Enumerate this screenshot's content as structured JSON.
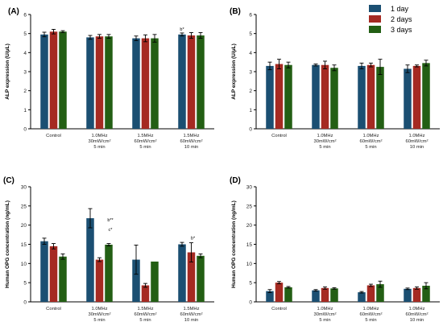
{
  "legend": {
    "items": [
      "1 day",
      "2 days",
      "3 days"
    ],
    "colors": [
      "#1b4f72",
      "#a52a22",
      "#235f14"
    ]
  },
  "chart_data": [
    {
      "type": "bar",
      "panel_label": "(A)",
      "xlabel": "",
      "ylabel": "ALP expression (U/μL)",
      "ylim": [
        0,
        6
      ],
      "yticks": [
        "0",
        "1",
        "2",
        "3",
        "4",
        "5",
        "6"
      ],
      "grid": false,
      "categories": [
        [
          "Control"
        ],
        [
          "1.0MHz",
          "30mW/cm²",
          "5 min"
        ],
        [
          "1.5MHz",
          "60mW/cm²",
          "5 min"
        ],
        [
          "1.5MHz",
          "60mW/cm²",
          "10 min"
        ]
      ],
      "series": [
        {
          "name": "1 day",
          "values": [
            4.95,
            4.8,
            4.75,
            4.95
          ],
          "errors": [
            0.12,
            0.1,
            0.12,
            0.08
          ]
        },
        {
          "name": "2 days",
          "values": [
            5.1,
            4.85,
            4.75,
            4.9
          ],
          "errors": [
            0.12,
            0.1,
            0.18,
            0.15
          ]
        },
        {
          "name": "3 days",
          "values": [
            5.1,
            4.85,
            4.75,
            4.9
          ],
          "errors": [
            0.05,
            0.1,
            0.2,
            0.15
          ]
        }
      ],
      "annotations": [
        {
          "group": 3,
          "series": 0,
          "text": "b*"
        }
      ]
    },
    {
      "type": "bar",
      "panel_label": "(B)",
      "xlabel": "",
      "ylabel": "ALP expression (U/μL)",
      "ylim": [
        0,
        6
      ],
      "yticks": [
        "0",
        "1",
        "2",
        "3",
        "4",
        "5",
        "6"
      ],
      "grid": false,
      "categories": [
        [
          "Control"
        ],
        [
          "1.0MHz",
          "30mW/cm²",
          "5 min"
        ],
        [
          "1.0MHz",
          "60mW/cm²",
          "5 min"
        ],
        [
          "1.0MHz",
          "60mW/cm²",
          "10 min"
        ]
      ],
      "series": [
        {
          "name": "1 day",
          "values": [
            3.3,
            3.35,
            3.3,
            3.15
          ],
          "errors": [
            0.2,
            0.05,
            0.15,
            0.2
          ]
        },
        {
          "name": "2 days",
          "values": [
            3.4,
            3.35,
            3.35,
            3.3
          ],
          "errors": [
            0.25,
            0.2,
            0.1,
            0.05
          ]
        },
        {
          "name": "3 days",
          "values": [
            3.35,
            3.2,
            3.25,
            3.45
          ],
          "errors": [
            0.15,
            0.15,
            0.4,
            0.15
          ]
        }
      ],
      "annotations": []
    },
    {
      "type": "bar",
      "panel_label": "(C)",
      "xlabel": "",
      "ylabel": "Human OPG concentration (ng/mL)",
      "ylim": [
        0,
        30
      ],
      "yticks": [
        "0",
        "5",
        "10",
        "15",
        "20",
        "25",
        "30"
      ],
      "grid": false,
      "categories": [
        [
          "Control"
        ],
        [
          "1.0MHz",
          "30mW/cm²",
          "5 min"
        ],
        [
          "1.5MHz",
          "60mW/cm²",
          "5 min"
        ],
        [
          "1.5MHz",
          "60mW/cm²",
          "10 min"
        ]
      ],
      "series": [
        {
          "name": "1 day",
          "values": [
            15.8,
            21.8,
            11.0,
            15.0
          ],
          "errors": [
            0.8,
            2.5,
            3.8,
            0.5
          ]
        },
        {
          "name": "2 days",
          "values": [
            14.5,
            11.0,
            4.3,
            12.9
          ],
          "errors": [
            0.7,
            0.5,
            0.5,
            2.5
          ]
        },
        {
          "name": "3 days",
          "values": [
            11.8,
            14.9,
            10.5,
            12.0
          ],
          "errors": [
            0.7,
            0.3,
            0.0,
            0.5
          ]
        }
      ],
      "annotations": [
        {
          "group": 1,
          "series": 2,
          "text": "b**",
          "level": 21.0
        },
        {
          "group": 1,
          "series": 2,
          "text": "c*",
          "level": 18.5
        },
        {
          "group": 3,
          "series": 1,
          "text": "b*",
          "level": 16.3
        }
      ]
    },
    {
      "type": "bar",
      "panel_label": "(D)",
      "xlabel": "",
      "ylabel": "Human OPG concentration (ng/mL)",
      "ylim": [
        0,
        30
      ],
      "yticks": [
        "0",
        "5",
        "10",
        "15",
        "20",
        "25",
        "30"
      ],
      "grid": false,
      "categories": [
        [
          "Control"
        ],
        [
          "1.0MHz",
          "30mW/cm²",
          "5 min"
        ],
        [
          "1.0MHz",
          "60mW/cm²",
          "5 min"
        ],
        [
          "1.0MHz",
          "60mW/cm²",
          "10 min"
        ]
      ],
      "series": [
        {
          "name": "1 day",
          "values": [
            2.8,
            3.0,
            2.5,
            3.4
          ],
          "errors": [
            0.4,
            0.2,
            0.2,
            0.2
          ]
        },
        {
          "name": "2 days",
          "values": [
            5.0,
            3.6,
            4.3,
            3.6
          ],
          "errors": [
            0.3,
            0.3,
            0.3,
            0.3
          ]
        },
        {
          "name": "3 days",
          "values": [
            3.8,
            3.5,
            4.6,
            4.2
          ],
          "errors": [
            0.2,
            0.2,
            0.8,
            0.8
          ]
        }
      ],
      "annotations": []
    }
  ]
}
